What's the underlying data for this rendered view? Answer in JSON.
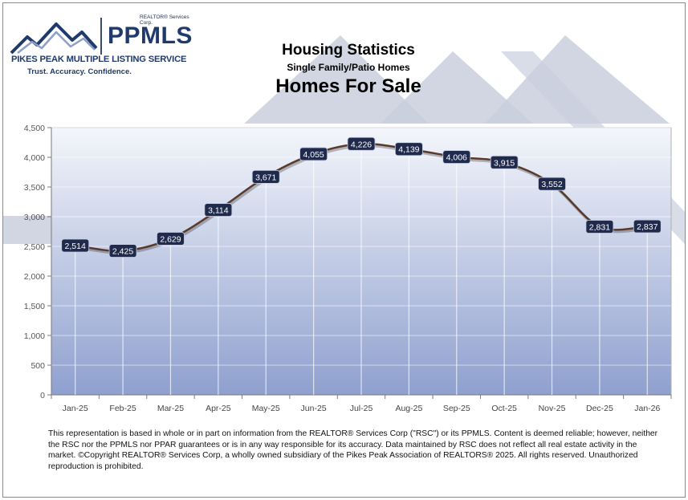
{
  "logo": {
    "corp": "REALTOR® Services Corp.",
    "abbrev": "PPMLS",
    "full_name": "PIKES PEAK MULTIPLE LISTING SERVICE",
    "tagline": "Trust. Accuracy. Confidence."
  },
  "colors": {
    "line": "#5a3a2a",
    "label_bg": "#1f2a4d",
    "plot_top": "#f4f6fb",
    "plot_bottom": "#8fa0cf",
    "mountain": "#c9cfdd"
  },
  "chart_data": {
    "type": "line",
    "title": "Housing Statistics",
    "subtitle": "Single Family/Patio Homes",
    "chart_title": "Homes For Sale",
    "categories": [
      "Jan-25",
      "Feb-25",
      "Mar-25",
      "Apr-25",
      "May-25",
      "Jun-25",
      "Jul-25",
      "Aug-25",
      "Sep-25",
      "Oct-25",
      "Nov-25",
      "Dec-25",
      "Jan-26"
    ],
    "values": [
      2514,
      2425,
      2629,
      3114,
      3671,
      4055,
      4226,
      4139,
      4006,
      3915,
      3552,
      2831,
      2837
    ],
    "value_labels": [
      "2,514",
      "2,425",
      "2,629",
      "3,114",
      "3,671",
      "4,055",
      "4,226",
      "4,139",
      "4,006",
      "3,915",
      "3,552",
      "2,831",
      "2,837"
    ],
    "ylim": [
      0,
      4500
    ],
    "yticks": [
      "0",
      "500",
      "1,000",
      "1,500",
      "2,000",
      "2,500",
      "3,000",
      "3,500",
      "4,000",
      "4,500"
    ],
    "ytick_values": [
      0,
      500,
      1000,
      1500,
      2000,
      2500,
      3000,
      3500,
      4000,
      4500
    ],
    "xlabel": "",
    "ylabel": "",
    "grid": true,
    "legend": "none"
  },
  "footer": {
    "disclaimer": "This representation is based in whole or in part on information from the REALTOR® Services Corp (\"RSC\") or its PPMLS. Content is deemed reliable; however, neither the RSC nor the PPMLS nor PPAR guarantees or is in any way responsible for its accuracy. Data maintained by RSC does not reflect all real estate activity in the market. ©Copyright REALTOR® Services Corp, a wholly owned subsidiary of the Pikes Peak Association of REALTORS® 2025. All rights reserved. Unauthorized reproduction is prohibited."
  }
}
